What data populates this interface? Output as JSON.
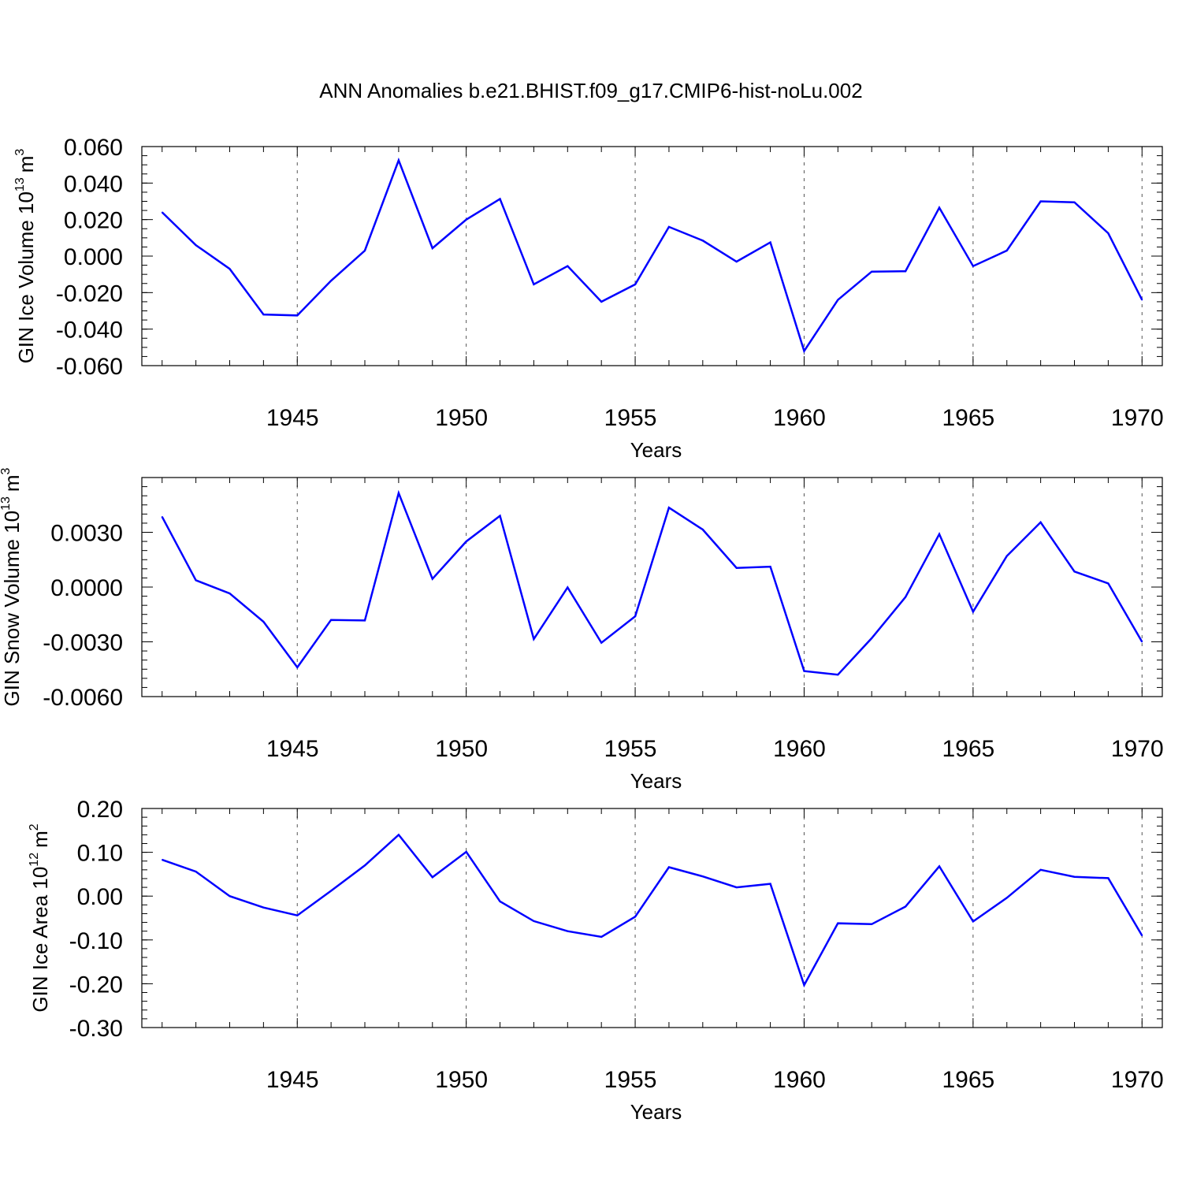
{
  "title": "ANN Anomalies b.e21.BHIST.f09_g17.CMIP6-hist-noLu.002",
  "colors": {
    "line": "#0000ff",
    "axis": "#000000",
    "grid": "#555555"
  },
  "chart_data": [
    {
      "type": "line",
      "ylabel": "GIN Ice Volume 10",
      "ylabel_exp": "13",
      "ylabel_unit": "m",
      "ylabel_unit_exp": "3",
      "xlabel": "Years",
      "xlim": [
        1940.4,
        1970.6
      ],
      "ylim": [
        -0.06,
        0.06
      ],
      "x_ticks": [
        "1945",
        "1950",
        "1955",
        "1960",
        "1965",
        "1970"
      ],
      "y_ticks": [
        "-0.060",
        "-0.040",
        "-0.020",
        "0.000",
        "0.020",
        "0.040",
        "0.060"
      ],
      "grid": "vertical dashed at major x ticks",
      "series": [
        {
          "x": [
            1941,
            1942,
            1943,
            1944,
            1945,
            1946,
            1947,
            1948,
            1949,
            1950,
            1951,
            1952,
            1953,
            1954,
            1955,
            1956,
            1957,
            1958,
            1959,
            1960,
            1961,
            1962,
            1963,
            1964,
            1965,
            1966,
            1967,
            1968,
            1969,
            1970
          ],
          "values": [
            0.024,
            0.006,
            -0.007,
            -0.032,
            -0.0325,
            -0.0135,
            0.003,
            0.0525,
            0.0043,
            0.02,
            0.0313,
            -0.0155,
            -0.0055,
            -0.025,
            -0.0155,
            0.016,
            0.0085,
            -0.003,
            0.0075,
            -0.052,
            -0.024,
            -0.0085,
            -0.0083,
            0.0265,
            -0.0055,
            0.003,
            0.03,
            0.0295,
            0.0125,
            -0.024
          ]
        }
      ]
    },
    {
      "type": "line",
      "ylabel": "GIN Snow Volume 10",
      "ylabel_exp": "13",
      "ylabel_unit": "m",
      "ylabel_unit_exp": "3",
      "xlabel": "Years",
      "xlim": [
        1940.4,
        1970.6
      ],
      "ylim": [
        -0.006,
        0.006
      ],
      "x_ticks": [
        "1945",
        "1950",
        "1955",
        "1960",
        "1965",
        "1970"
      ],
      "y_ticks": [
        "-0.0060",
        "-0.0030",
        "0.0000",
        "0.0030"
      ],
      "grid": "vertical dashed at major x ticks",
      "series": [
        {
          "x": [
            1941,
            1942,
            1943,
            1944,
            1945,
            1946,
            1947,
            1948,
            1949,
            1950,
            1951,
            1952,
            1953,
            1954,
            1955,
            1956,
            1957,
            1958,
            1959,
            1960,
            1961,
            1962,
            1963,
            1964,
            1965,
            1966,
            1967,
            1968,
            1969,
            1970
          ],
          "values": [
            0.00385,
            0.00037,
            -0.00035,
            -0.0019,
            -0.0044,
            -0.0018,
            -0.00183,
            0.00515,
            0.00045,
            0.0025,
            0.0039,
            -0.00285,
            -2e-05,
            -0.00305,
            -0.0016,
            0.00435,
            0.00315,
            0.00105,
            0.00112,
            -0.0046,
            -0.0048,
            -0.0028,
            -0.00055,
            0.0029,
            -0.00135,
            0.0017,
            0.00355,
            0.00085,
            0.0002,
            -0.003
          ]
        }
      ]
    },
    {
      "type": "line",
      "ylabel": "GIN Ice Area 10",
      "ylabel_exp": "12",
      "ylabel_unit": "m",
      "ylabel_unit_exp": "2",
      "xlabel": "Years",
      "xlim": [
        1940.4,
        1970.6
      ],
      "ylim": [
        -0.3,
        0.2
      ],
      "x_ticks": [
        "1945",
        "1950",
        "1955",
        "1960",
        "1965",
        "1970"
      ],
      "y_ticks": [
        "-0.30",
        "-0.20",
        "-0.10",
        "0.00",
        "0.10",
        "0.20"
      ],
      "grid": "vertical dashed at major x ticks",
      "series": [
        {
          "x": [
            1941,
            1942,
            1943,
            1944,
            1945,
            1946,
            1947,
            1948,
            1949,
            1950,
            1951,
            1952,
            1953,
            1954,
            1955,
            1956,
            1957,
            1958,
            1959,
            1960,
            1961,
            1962,
            1963,
            1964,
            1965,
            1966,
            1967,
            1968,
            1969,
            1970
          ],
          "values": [
            0.083,
            0.056,
            0.0,
            -0.026,
            -0.044,
            0.012,
            0.07,
            0.14,
            0.043,
            0.101,
            -0.012,
            -0.057,
            -0.08,
            -0.093,
            -0.047,
            0.066,
            0.045,
            0.02,
            0.028,
            -0.203,
            -0.062,
            -0.064,
            -0.024,
            0.068,
            -0.058,
            -0.004,
            0.06,
            0.044,
            0.041,
            -0.09
          ]
        }
      ]
    }
  ]
}
